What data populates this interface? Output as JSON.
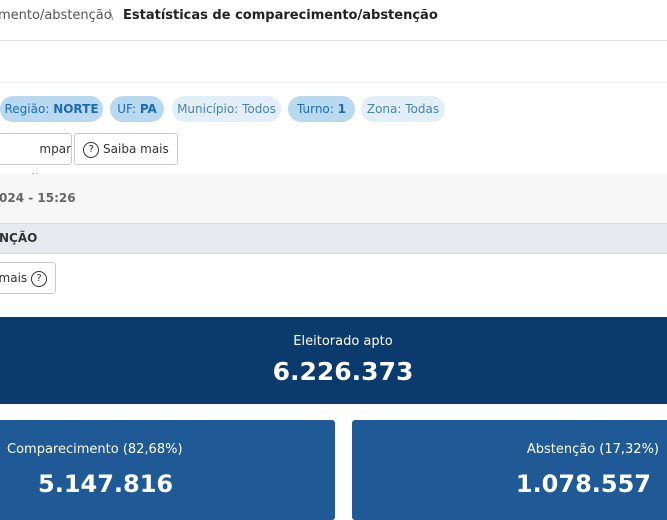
{
  "breadcrumb": {
    "parent": "mento/abstenção",
    "separator": "\\",
    "current": "Estatísticas de comparecimento/abstenção"
  },
  "filters": [
    {
      "label": "Região:",
      "value": "NORTE"
    },
    {
      "label": "UF:",
      "value": "PA"
    },
    {
      "label": "Município:",
      "value": "Todos"
    },
    {
      "label": "Turno:",
      "value": "1"
    },
    {
      "label": "Zona:",
      "value": "Todas"
    }
  ],
  "buttons": {
    "clear": "mpar Filtros",
    "help": "Saiba mais"
  },
  "updated": "024 - 15:26",
  "section": {
    "title": "NÇÃO",
    "help": "mais"
  },
  "summary": {
    "label": "Eleitorado apto",
    "value": "6.226.373"
  },
  "cards": [
    {
      "label": "Comparecimento (82,68%)",
      "value": "5.147.816"
    },
    {
      "label": "Abstenção (17,32%)",
      "value": "1.078.557"
    }
  ]
}
